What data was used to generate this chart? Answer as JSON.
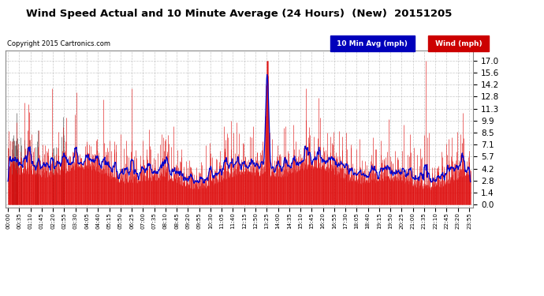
{
  "title": "Wind Speed Actual and 10 Minute Average (24 Hours)  (New)  20151205",
  "copyright": "Copyright 2015 Cartronics.com",
  "legend_avg_label": "10 Min Avg (mph)",
  "legend_wind_label": "Wind (mph)",
  "yticks": [
    0.0,
    1.4,
    2.8,
    4.2,
    5.7,
    7.1,
    8.5,
    9.9,
    11.3,
    12.8,
    14.2,
    15.6,
    17.0
  ],
  "ylim": [
    -0.3,
    18.2
  ],
  "wind_color": "#dd0000",
  "dark_color": "#444444",
  "avg_color": "#0000cc",
  "bg_color": "#ffffff",
  "grid_color": "#bbbbbb",
  "plot_bg": "#ffffff",
  "legend_avg_bg": "#0000bb",
  "legend_wind_bg": "#cc0000",
  "tick_labels": [
    "00:00",
    "00:35",
    "01:10",
    "01:45",
    "02:20",
    "02:55",
    "03:30",
    "04:05",
    "04:40",
    "05:15",
    "05:50",
    "06:25",
    "07:00",
    "07:35",
    "08:10",
    "08:45",
    "09:20",
    "09:55",
    "10:30",
    "11:05",
    "11:40",
    "12:15",
    "12:50",
    "13:25",
    "14:00",
    "14:35",
    "15:10",
    "15:45",
    "16:20",
    "16:55",
    "17:30",
    "18:05",
    "18:40",
    "19:15",
    "19:50",
    "20:25",
    "21:00",
    "21:35",
    "22:10",
    "22:45",
    "23:20",
    "23:55"
  ],
  "seed": 12345
}
